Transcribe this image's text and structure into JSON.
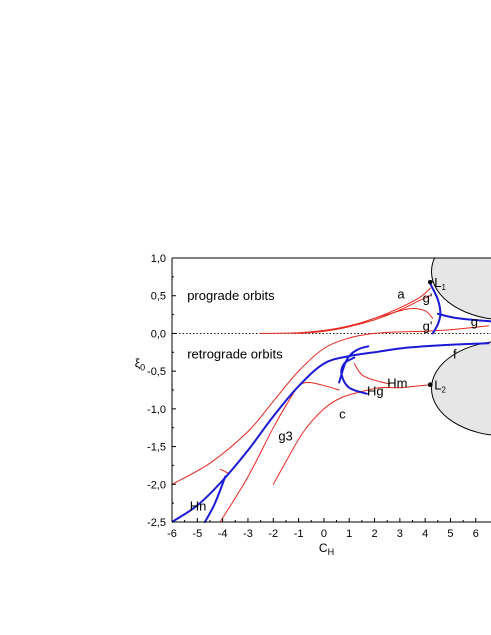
{
  "chart_data": {
    "type": "line",
    "xlabel": {
      "base": "C",
      "sub": "H"
    },
    "ylabel": {
      "base": "ξ",
      "sub": "0"
    },
    "xlim": [
      -6,
      6.6
    ],
    "ylim": [
      -2.5,
      1.0
    ],
    "xticks": [
      -6,
      -5,
      -4,
      -3,
      -2,
      -1,
      0,
      1,
      2,
      3,
      4,
      5,
      6
    ],
    "yticks": [
      1.0,
      0.5,
      0.0,
      -0.5,
      -1.0,
      -1.5,
      -2.0,
      -2.5
    ],
    "ytick_labels": [
      "1,0",
      "0,5",
      "0,0",
      "-0,5",
      "-1,0",
      "-1,5",
      "-2,0",
      "-2,5"
    ],
    "grid": false,
    "zero_line": {
      "y": 0.0,
      "style": "dotted"
    },
    "colors": {
      "red": "#e8271e",
      "blue": "#1a1ad6",
      "region_fill": "#e6e6e6"
    },
    "forbidden_regions": [
      {
        "center": [
          7.2,
          0.82
        ],
        "radius": [
          2.95,
          0.64
        ]
      },
      {
        "center": [
          7.2,
          -0.73
        ],
        "radius": [
          2.95,
          0.63
        ]
      }
    ],
    "points": [
      {
        "label": "L",
        "sub": "1",
        "x": 4.2,
        "y": 0.68
      },
      {
        "label": "L",
        "sub": "2",
        "x": 4.2,
        "y": -0.68
      }
    ],
    "series": [
      {
        "color": "red",
        "width": 1,
        "points": [
          [
            -2.5,
            0.0
          ],
          [
            -1,
            0.01
          ],
          [
            0,
            0.04
          ],
          [
            1,
            0.1
          ],
          [
            2,
            0.2
          ],
          [
            3,
            0.34
          ],
          [
            3.8,
            0.48
          ],
          [
            4.2,
            0.6
          ]
        ]
      },
      {
        "color": "red",
        "width": 1,
        "points": [
          [
            -1,
            0.0
          ],
          [
            0,
            0.03
          ],
          [
            1,
            0.09
          ],
          [
            2,
            0.18
          ],
          [
            3,
            0.31
          ],
          [
            3.8,
            0.44
          ],
          [
            4.2,
            0.5
          ]
        ]
      },
      {
        "color": "red",
        "width": 1,
        "points": [
          [
            -1.2,
            0.0
          ],
          [
            0,
            0.03
          ],
          [
            1,
            0.09
          ],
          [
            2,
            0.2
          ],
          [
            3,
            0.3
          ],
          [
            3.5,
            0.33
          ],
          [
            4.0,
            0.3
          ],
          [
            4.3,
            0.2
          ]
        ]
      },
      {
        "color": "red",
        "width": 1,
        "points": [
          [
            -6,
            -2.0
          ],
          [
            -4.5,
            -1.72
          ],
          [
            -3,
            -1.3
          ],
          [
            -2,
            -0.9
          ],
          [
            -1,
            -0.5
          ],
          [
            0,
            -0.2
          ],
          [
            1,
            -0.06
          ],
          [
            2,
            0.0
          ],
          [
            3,
            0.02
          ],
          [
            4,
            0.03
          ],
          [
            5,
            0.05
          ],
          [
            6.5,
            0.1
          ]
        ]
      },
      {
        "color": "red",
        "width": 1,
        "points": [
          [
            -4.1,
            -2.5
          ],
          [
            -3,
            -1.9
          ],
          [
            -2,
            -1.25
          ],
          [
            -1.4,
            -0.9
          ],
          [
            -1,
            -0.7
          ],
          [
            -0.6,
            -0.65
          ],
          [
            0.1,
            -0.7
          ],
          [
            0.6,
            -0.75
          ]
        ]
      },
      {
        "color": "red",
        "width": 1,
        "points": [
          [
            -2,
            -2.0
          ],
          [
            -1.5,
            -1.7
          ],
          [
            -0.8,
            -1.3
          ],
          [
            0,
            -1.0
          ],
          [
            0.7,
            -0.85
          ],
          [
            1.5,
            -0.77
          ],
          [
            2.2,
            -0.72
          ],
          [
            3,
            -0.72
          ],
          [
            3.6,
            -0.7
          ],
          [
            4.2,
            -0.68
          ]
        ]
      },
      {
        "color": "red",
        "width": 1,
        "points": [
          [
            1.2,
            -0.4
          ],
          [
            1.5,
            -0.55
          ],
          [
            2,
            -0.62
          ],
          [
            2.6,
            -0.67
          ]
        ]
      },
      {
        "color": "red",
        "width": 1,
        "points": [
          [
            -4.1,
            -1.8
          ],
          [
            -3.8,
            -1.85
          ]
        ]
      },
      {
        "color": "blue",
        "width": 2,
        "points": [
          [
            -6,
            -2.5
          ],
          [
            -5,
            -2.28
          ],
          [
            -4,
            -1.95
          ],
          [
            -3,
            -1.55
          ],
          [
            -2,
            -1.1
          ],
          [
            -1,
            -0.7
          ],
          [
            0,
            -0.4
          ],
          [
            1,
            -0.3
          ],
          [
            2,
            -0.25
          ],
          [
            3,
            -0.2
          ],
          [
            4,
            -0.17
          ],
          [
            5,
            -0.15
          ],
          [
            6.5,
            -0.13
          ]
        ]
      },
      {
        "color": "blue",
        "width": 2,
        "points": [
          [
            4.2,
            0.66
          ],
          [
            4.5,
            0.45
          ],
          [
            4.6,
            0.26
          ],
          [
            4.5,
            0.12
          ],
          [
            4.3,
            0.0
          ]
        ]
      },
      {
        "color": "blue",
        "width": 2,
        "points": [
          [
            4.5,
            0.26
          ],
          [
            5.3,
            0.2
          ],
          [
            6.6,
            0.16
          ]
        ]
      },
      {
        "color": "blue",
        "width": 2,
        "points": [
          [
            0.6,
            -0.65
          ],
          [
            0.9,
            -0.35
          ],
          [
            1.3,
            -0.22
          ],
          [
            1.75,
            -0.17
          ]
        ]
      },
      {
        "color": "blue",
        "width": 2,
        "points": [
          [
            1.7,
            -0.8
          ],
          [
            1.0,
            -0.72
          ],
          [
            0.7,
            -0.55
          ],
          [
            0.8,
            -0.4
          ],
          [
            1.2,
            -0.32
          ]
        ]
      },
      {
        "color": "blue",
        "width": 2,
        "points": [
          [
            -4.7,
            -2.5
          ],
          [
            -4.3,
            -2.25
          ],
          [
            -3.9,
            -1.9
          ]
        ]
      }
    ],
    "annotations": [
      {
        "text": "prograde orbits",
        "x": -5.4,
        "y": 0.44,
        "size": "small"
      },
      {
        "text": "retrograde orbits",
        "x": -5.4,
        "y": -0.33,
        "size": "small"
      },
      {
        "text": "a",
        "x": 2.9,
        "y": 0.46
      },
      {
        "text": "g'",
        "x": 3.9,
        "y": 0.41
      },
      {
        "text": "g'",
        "x": 3.9,
        "y": 0.04
      },
      {
        "text": "g",
        "x": 5.8,
        "y": 0.1
      },
      {
        "text": "f",
        "x": 5.1,
        "y": -0.33
      },
      {
        "text": "Hm",
        "x": 2.5,
        "y": -0.72
      },
      {
        "text": "Hg",
        "x": 1.7,
        "y": -0.82
      },
      {
        "text": "c",
        "x": 0.6,
        "y": -1.13
      },
      {
        "text": "g3",
        "x": -1.8,
        "y": -1.42
      },
      {
        "text": "Hn",
        "x": -5.3,
        "y": -2.35
      }
    ]
  }
}
